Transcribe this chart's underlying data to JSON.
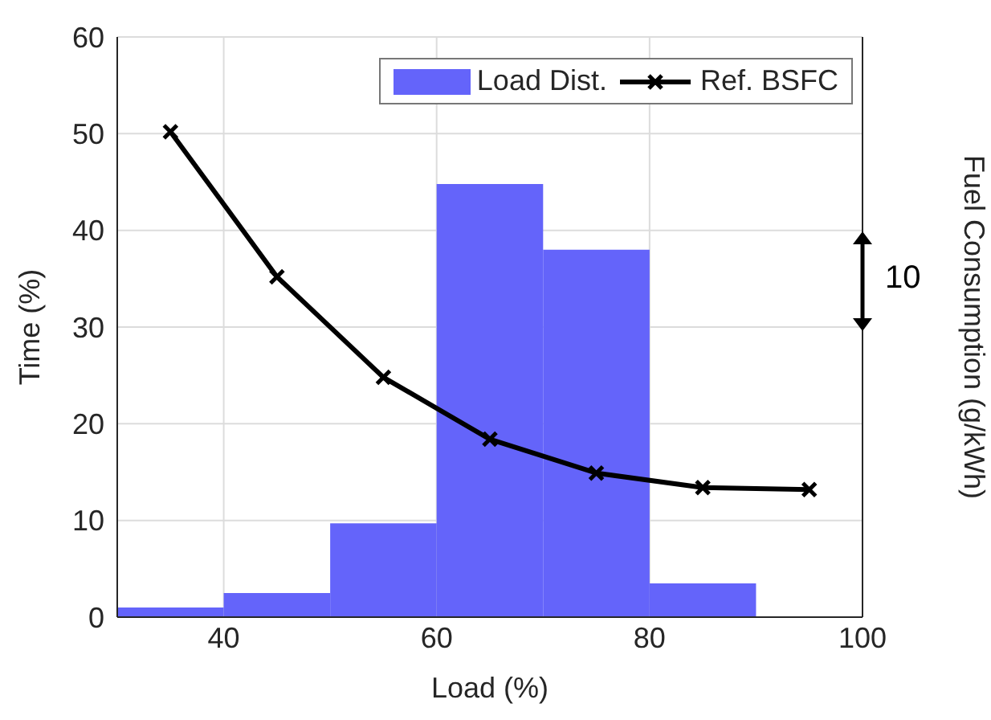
{
  "chart_data": {
    "type": "histogram",
    "xlabel": "Load (%)",
    "ylabel": "Time (%)",
    "y2label": "Fuel Consumption (g/kWh)",
    "bins": [
      30,
      40,
      50,
      60,
      70,
      80,
      90
    ],
    "series": [
      {
        "name": "Load Dist.",
        "color": "#6464fa",
        "values": [
          1,
          2.5,
          9.7,
          44.8,
          38,
          3.5
        ]
      },
      {
        "type": "line",
        "name": "Ref. BSFC",
        "color": "#000000",
        "x": [
          35,
          45,
          55,
          65,
          75,
          85,
          95
        ],
        "values": [
          50.2,
          35.2,
          24.8,
          18.4,
          14.9,
          13.4,
          13.2
        ],
        "marker": "cross",
        "line_style": "solid"
      }
    ],
    "xlim": [
      30,
      100
    ],
    "xticks": [
      40,
      60,
      80,
      100
    ],
    "ylim": [
      0,
      60
    ],
    "yticks": [
      0,
      10,
      20,
      30,
      40,
      50,
      60
    ],
    "grid": true,
    "legend": "top right",
    "annotations": [
      "10"
    ]
  }
}
